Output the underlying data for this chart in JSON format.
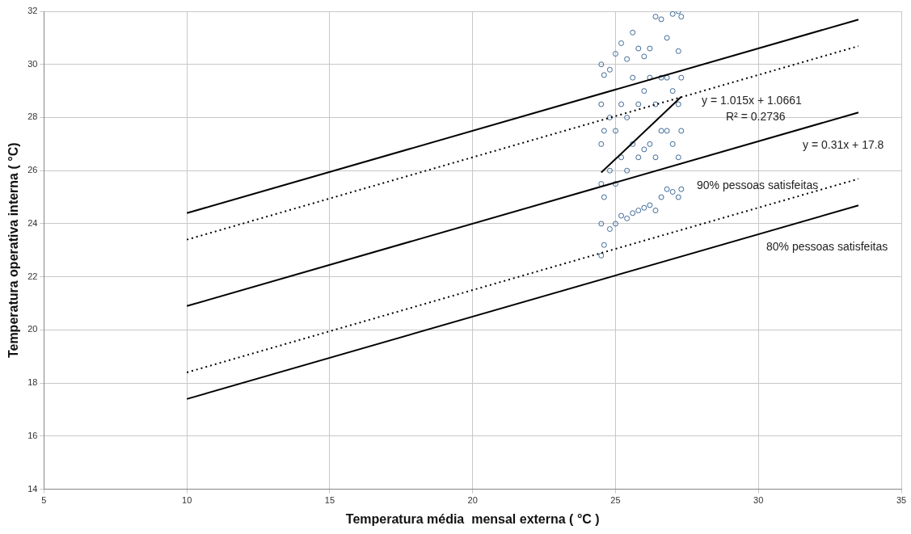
{
  "chart_data": {
    "type": "scatter",
    "xlabel": "Temperatura média  mensal externa ( °C )",
    "ylabel": "Temperatura operativa interna ( °C)",
    "xlim": [
      5,
      35
    ],
    "xticks": [
      5,
      10,
      15,
      20,
      25,
      30,
      35
    ],
    "ylim": [
      14,
      32
    ],
    "yticks": [
      14,
      16,
      18,
      20,
      22,
      24,
      26,
      28,
      30,
      32
    ],
    "grid": true,
    "legend": false,
    "series": [
      {
        "type": "line",
        "color": "#000000",
        "line_style": "solid",
        "marker": "none",
        "x": [
          10,
          33.5
        ],
        "values": [
          24.4,
          31.69
        ]
      },
      {
        "type": "line",
        "color": "#000000",
        "line_style": "dotted",
        "marker": "none",
        "x": [
          10,
          33.5
        ],
        "values": [
          23.4,
          30.69
        ]
      },
      {
        "type": "line",
        "color": "#000000",
        "line_style": "solid",
        "marker": "none",
        "x": [
          10,
          33.5
        ],
        "values": [
          20.9,
          28.19
        ]
      },
      {
        "type": "line",
        "color": "#000000",
        "line_style": "dotted",
        "marker": "none",
        "x": [
          10,
          33.5
        ],
        "values": [
          18.4,
          25.69
        ]
      },
      {
        "type": "line",
        "color": "#000000",
        "line_style": "solid",
        "marker": "none",
        "x": [
          10,
          33.5
        ],
        "values": [
          17.4,
          24.69
        ]
      },
      {
        "type": "line",
        "color": "#000000",
        "line_style": "solid",
        "marker": "none",
        "x": [
          24.5,
          27.3
        ],
        "values": [
          25.93,
          28.78
        ]
      },
      {
        "type": "scatter",
        "color": "#3f6a99",
        "marker": "circle",
        "x": [
          24.5,
          24.5,
          24.5,
          24.5,
          24.5,
          24.5,
          24.6,
          24.6,
          24.6,
          24.6,
          24.8,
          24.8,
          24.8,
          24.8,
          25.0,
          25.0,
          25.0,
          25.0,
          25.2,
          25.2,
          25.2,
          25.2,
          25.4,
          25.4,
          25.4,
          25.4,
          25.6,
          25.6,
          25.6,
          25.6,
          25.8,
          25.8,
          25.8,
          25.8,
          26.0,
          26.0,
          26.0,
          26.0,
          26.2,
          26.2,
          26.2,
          26.2,
          26.4,
          26.4,
          26.4,
          26.4,
          26.6,
          26.6,
          26.6,
          26.6,
          26.8,
          26.8,
          26.8,
          26.8,
          27.0,
          27.0,
          27.0,
          27.0,
          27.2,
          27.2,
          27.2,
          27.2,
          27.2,
          27.3,
          27.3,
          27.3,
          27.3
        ],
        "values": [
          22.8,
          24,
          25.5,
          27,
          28.5,
          30.0,
          23.2,
          25,
          27.5,
          29.6,
          23.8,
          26,
          28,
          29.8,
          24.0,
          25.5,
          27.5,
          30.4,
          24.3,
          26.5,
          28.5,
          30.8,
          24.2,
          26,
          28,
          30.2,
          24.4,
          27,
          29.5,
          31.2,
          24.5,
          26.5,
          28.5,
          30.6,
          24.6,
          26.8,
          29,
          30.3,
          24.7,
          27,
          29.5,
          30.6,
          24.5,
          26.5,
          28.5,
          31.8,
          25.0,
          27.5,
          29.5,
          31.7,
          25.3,
          27.5,
          29.5,
          31.0,
          25.2,
          27,
          29,
          31.9,
          25.0,
          26.5,
          28.5,
          30.5,
          32.0,
          25.3,
          27.5,
          29.5,
          31.8
        ]
      }
    ],
    "annotations": [
      "y = 1.015x + 1.0661",
      "R² = 0.2736",
      "y = 0.31x + 17.8",
      "90% pessoas satisfeitas",
      "80% pessoas satisfeitas"
    ]
  }
}
